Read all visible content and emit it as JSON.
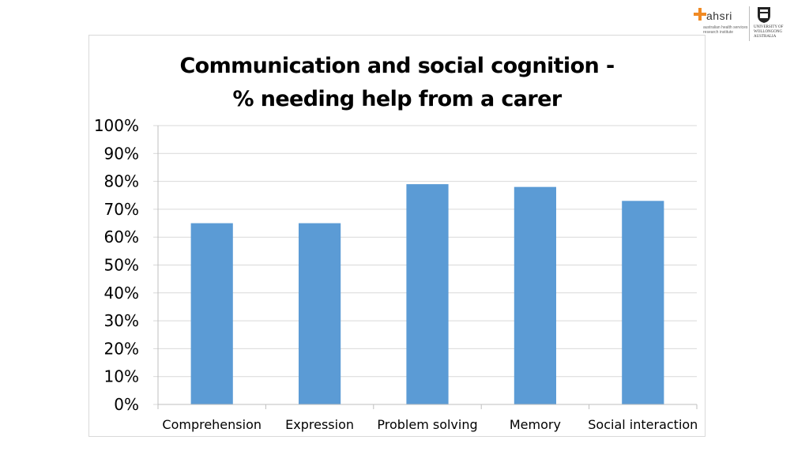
{
  "logos": {
    "ahsri_name": "ahsri",
    "ahsri_sub": "australian health services research institute",
    "uow_name": "UNIVERSITY OF WOLLONGONG AUSTRALIA"
  },
  "chart_data": {
    "type": "bar",
    "title": "Communication and social cognition -\n% needing help from a carer",
    "categories": [
      "Comprehension",
      "Expression",
      "Problem solving",
      "Memory",
      "Social interaction"
    ],
    "values": [
      65,
      65,
      79,
      78,
      73
    ],
    "ylim": [
      0,
      100
    ],
    "yticks": [
      "0%",
      "10%",
      "20%",
      "30%",
      "40%",
      "50%",
      "60%",
      "70%",
      "80%",
      "90%",
      "100%"
    ],
    "xlabel": "",
    "ylabel": "",
    "grid": true,
    "legend": "none",
    "bar_color": "#5b9bd5",
    "grid_color": "#d9d9d9"
  }
}
